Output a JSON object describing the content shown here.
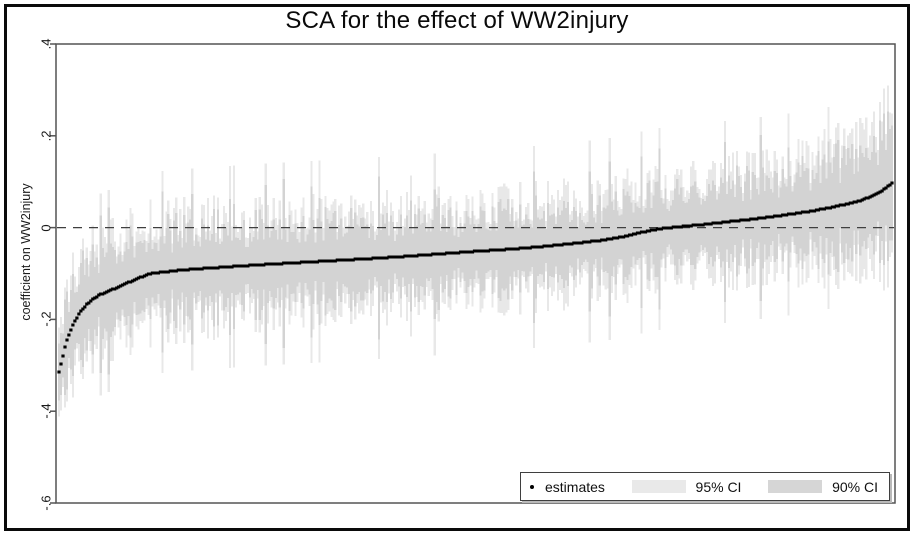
{
  "chart_data": {
    "type": "scatter",
    "variant": "specification-curve",
    "title": "SCA for the effect of WW2injury",
    "xlabel": "",
    "ylabel": "coefficient on WW2injury",
    "ylim": [
      -0.6,
      0.4
    ],
    "yticks": [
      0.4,
      0.2,
      0,
      -0.2,
      -0.4,
      -0.6
    ],
    "ytick_labels": [
      ".4",
      ".2",
      "0",
      "-.2",
      "-.4",
      "-.6"
    ],
    "grid": "off",
    "x_axis_ticks": "none",
    "n_specifications": 420,
    "reference_line": 0,
    "estimates_range": [
      -0.315,
      0.097
    ],
    "estimates_curve_anchors": [
      [
        0.0,
        -0.315
      ],
      [
        0.004,
        -0.285
      ],
      [
        0.007,
        -0.262
      ],
      [
        0.01,
        -0.243
      ],
      [
        0.014,
        -0.224
      ],
      [
        0.018,
        -0.207
      ],
      [
        0.023,
        -0.191
      ],
      [
        0.028,
        -0.178
      ],
      [
        0.034,
        -0.166
      ],
      [
        0.041,
        -0.156
      ],
      [
        0.048,
        -0.147
      ],
      [
        0.06,
        -0.138
      ],
      [
        0.075,
        -0.127
      ],
      [
        0.09,
        -0.114
      ],
      [
        0.11,
        -0.1
      ],
      [
        0.15,
        -0.092
      ],
      [
        0.2,
        -0.086
      ],
      [
        0.24,
        -0.081
      ],
      [
        0.3,
        -0.075
      ],
      [
        0.37,
        -0.068
      ],
      [
        0.43,
        -0.061
      ],
      [
        0.49,
        -0.053
      ],
      [
        0.55,
        -0.046
      ],
      [
        0.6,
        -0.038
      ],
      [
        0.65,
        -0.028
      ],
      [
        0.68,
        -0.019
      ],
      [
        0.7,
        -0.01
      ],
      [
        0.72,
        -0.003
      ],
      [
        0.745,
        0.002
      ],
      [
        0.775,
        0.007
      ],
      [
        0.805,
        0.013
      ],
      [
        0.84,
        0.02
      ],
      [
        0.87,
        0.027
      ],
      [
        0.9,
        0.035
      ],
      [
        0.925,
        0.043
      ],
      [
        0.945,
        0.051
      ],
      [
        0.962,
        0.059
      ],
      [
        0.976,
        0.068
      ],
      [
        0.986,
        0.078
      ],
      [
        0.994,
        0.088
      ],
      [
        1.0,
        0.097
      ]
    ],
    "ci95_halfwidth_anchors": [
      [
        0.0,
        0.135
      ],
      [
        0.05,
        0.122
      ],
      [
        0.15,
        0.118
      ],
      [
        0.3,
        0.113
      ],
      [
        0.5,
        0.108
      ],
      [
        0.65,
        0.108
      ],
      [
        0.8,
        0.113
      ],
      [
        0.9,
        0.122
      ],
      [
        0.97,
        0.148
      ],
      [
        1.0,
        0.172
      ]
    ],
    "ci90_to_ci95_ratio": 0.84,
    "interpolation": "piecewise-linear",
    "legend": [
      {
        "label": "estimates",
        "marker": "dot",
        "color": "#000000"
      },
      {
        "label": "95% CI",
        "marker": "band",
        "color": "#e9e9e9"
      },
      {
        "label": "90% CI",
        "marker": "band",
        "color": "#d6d6d6"
      }
    ],
    "legend_position": "bottom-right-inside",
    "colors": {
      "estimates": "#000000",
      "ci95": "#e8e8e8",
      "ci90": "#d3d3d3",
      "zero_line": "#3f3f3f",
      "axis": "#545454"
    }
  }
}
